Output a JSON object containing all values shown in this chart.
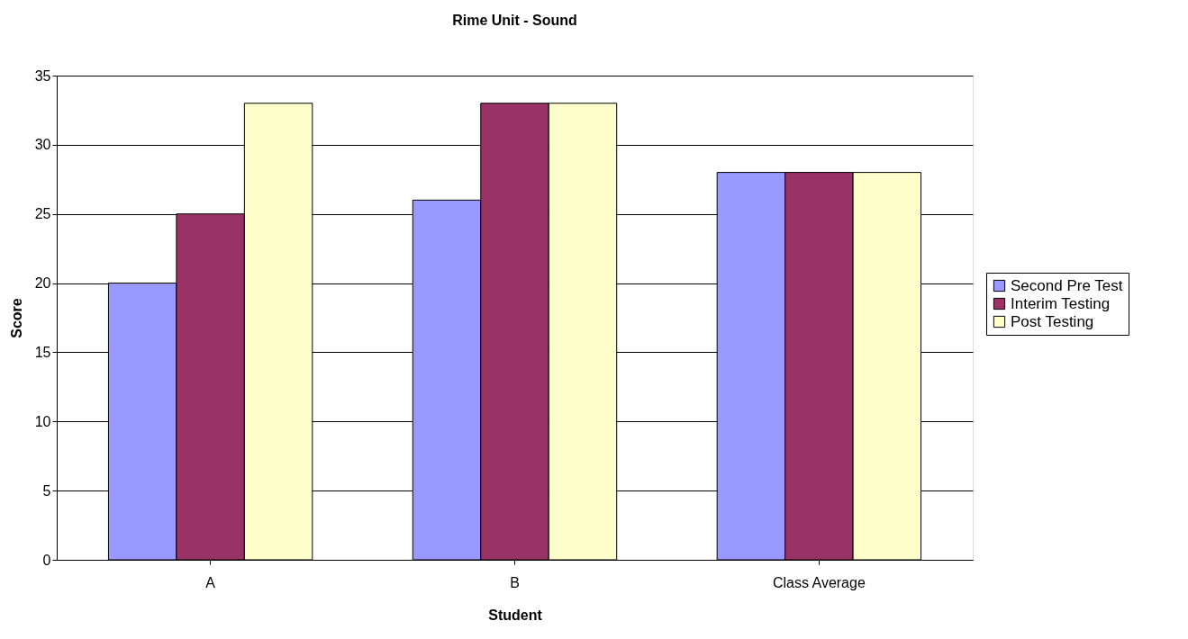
{
  "chart_data": {
    "type": "bar",
    "title": "Rime Unit - Sound",
    "xlabel": "Student",
    "ylabel": "Score",
    "categories": [
      "A",
      "B",
      "Class Average"
    ],
    "series": [
      {
        "name": "Second Pre Test",
        "color": "#9999ff",
        "values": [
          20,
          26,
          28
        ]
      },
      {
        "name": "Interim Testing",
        "color": "#993366",
        "values": [
          25,
          33,
          28
        ]
      },
      {
        "name": "Post Testing",
        "color": "#ffffcc",
        "values": [
          33,
          33,
          28
        ]
      }
    ],
    "ylim": [
      0,
      35
    ],
    "yticks": [
      0,
      5,
      10,
      15,
      20,
      25,
      30,
      35
    ],
    "grid": "y",
    "legend": "right"
  }
}
